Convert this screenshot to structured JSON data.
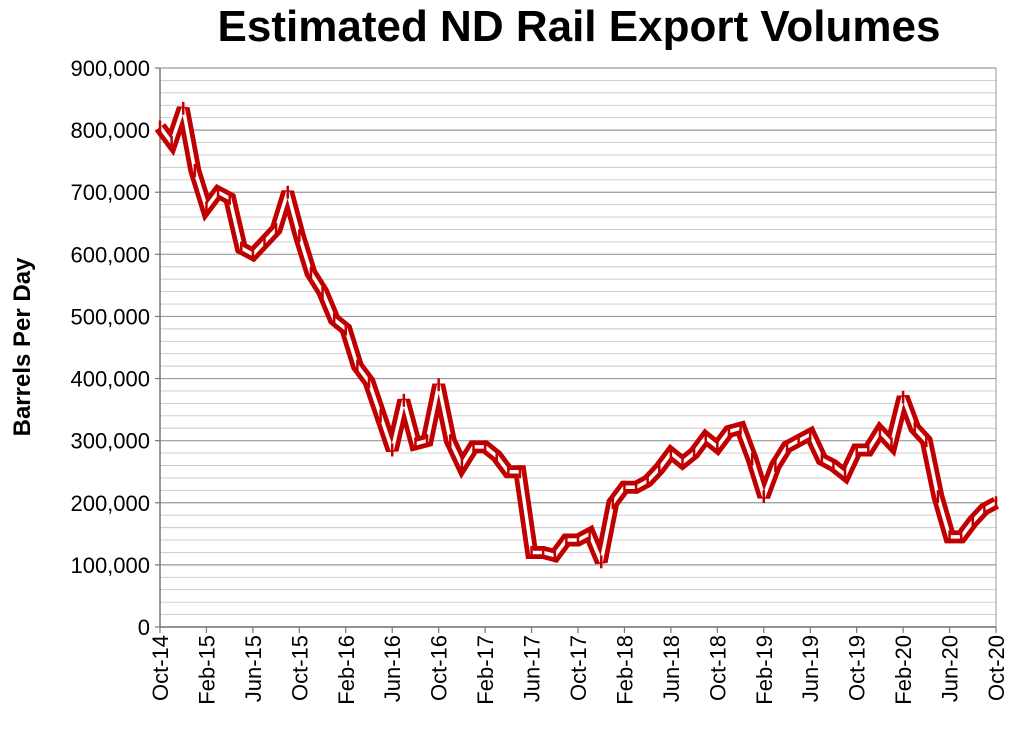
{
  "chart_data": {
    "type": "line",
    "title": "Estimated ND Rail Export Volumes",
    "xlabel": "",
    "ylabel": "Barrels Per Day",
    "ylim": [
      0,
      900000
    ],
    "y_ticks": [
      "0",
      "100,000",
      "200,000",
      "300,000",
      "400,000",
      "500,000",
      "600,000",
      "700,000",
      "800,000",
      "900,000"
    ],
    "x_tick_labels": [
      "Oct-14",
      "Feb-15",
      "Jun-15",
      "Oct-15",
      "Feb-16",
      "Jun-16",
      "Oct-16",
      "Feb-17",
      "Jun-17",
      "Oct-17",
      "Feb-18",
      "Jun-18",
      "Oct-18",
      "Feb-19",
      "Jun-19",
      "Oct-19",
      "Feb-20",
      "Jun-20",
      "Oct-20"
    ],
    "grid": true,
    "series": [
      {
        "name": "Estimated ND Rail Export Volumes",
        "color": "#c00000",
        "x": [
          "Oct-14",
          "Nov-14",
          "Dec-14",
          "Jan-15",
          "Feb-15",
          "Mar-15",
          "Apr-15",
          "May-15",
          "Jun-15",
          "Jul-15",
          "Aug-15",
          "Sep-15",
          "Oct-15",
          "Nov-15",
          "Dec-15",
          "Jan-16",
          "Feb-16",
          "Mar-16",
          "Apr-16",
          "May-16",
          "Jun-16",
          "Jul-16",
          "Aug-16",
          "Sep-16",
          "Oct-16",
          "Nov-16",
          "Dec-16",
          "Jan-17",
          "Feb-17",
          "Mar-17",
          "Apr-17",
          "May-17",
          "Jun-17",
          "Jul-17",
          "Aug-17",
          "Sep-17",
          "Oct-17",
          "Nov-17",
          "Dec-17",
          "Jan-18",
          "Feb-18",
          "Mar-18",
          "Apr-18",
          "May-18",
          "Jun-18",
          "Jul-18",
          "Aug-18",
          "Sep-18",
          "Oct-18",
          "Nov-18",
          "Dec-18",
          "Jan-19",
          "Feb-19",
          "Mar-19",
          "Apr-19",
          "May-19",
          "Jun-19",
          "Jul-19",
          "Aug-19",
          "Sep-19",
          "Oct-19",
          "Nov-19",
          "Dec-19",
          "Jan-20",
          "Feb-20",
          "Mar-20",
          "Apr-20",
          "May-20",
          "Jun-20",
          "Jul-20",
          "Aug-20",
          "Sep-20",
          "Oct-20"
        ],
        "values": [
          805000,
          780000,
          835000,
          735000,
          675000,
          700000,
          690000,
          610000,
          600000,
          620000,
          640000,
          700000,
          630000,
          570000,
          540000,
          495000,
          480000,
          420000,
          395000,
          340000,
          285000,
          365000,
          295000,
          300000,
          390000,
          300000,
          260000,
          290000,
          290000,
          275000,
          250000,
          250000,
          120000,
          120000,
          115000,
          140000,
          140000,
          150000,
          105000,
          200000,
          225000,
          225000,
          235000,
          255000,
          280000,
          265000,
          280000,
          305000,
          290000,
          315000,
          320000,
          270000,
          210000,
          260000,
          290000,
          300000,
          310000,
          270000,
          260000,
          245000,
          285000,
          285000,
          315000,
          295000,
          370000,
          320000,
          300000,
          210000,
          145000,
          145000,
          170000,
          190000,
          200000
        ]
      }
    ]
  }
}
